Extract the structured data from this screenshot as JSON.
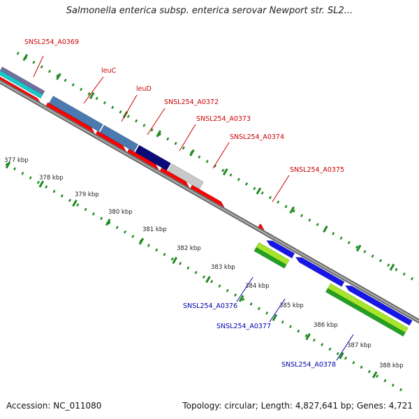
{
  "title": "Salmonella enterica subsp. enterica serovar Newport str. SL2...",
  "footer": {
    "accession": "Accession: NC_011080",
    "summary": "Topology: circular; Length: 4,827,641 bp; Genes: 4,721"
  },
  "colors": {
    "backbone": "#8c8c8c",
    "forward_cds": "#ff0000",
    "reverse_cds": "#1616e8",
    "forward_label": "#cc0000",
    "reverse_label": "#0000aa",
    "tick": "#1e8c1e",
    "gene_blue": "#4a7ab0",
    "gene_navy": "#0a0a78",
    "gene_gray": "#c8c8c8",
    "gene_cyan": "#18c8c8",
    "gene_slate": "#7070a0",
    "gene_green": "#22a022",
    "gene_lime": "#a6e62a"
  },
  "axis": {
    "unit": "kbp",
    "labels": [
      "377 kbp",
      "378 kbp",
      "379 kbp",
      "380 kbp",
      "381 kbp",
      "382 kbp",
      "383 kbp",
      "384 kbp",
      "385 kbp",
      "386 kbp",
      "387 kbp",
      "388 kbp"
    ]
  },
  "genes_forward": [
    {
      "label": "SNSL254_A0369"
    },
    {
      "label": "leuC"
    },
    {
      "label": "leuD"
    },
    {
      "label": "SNSL254_A0372"
    },
    {
      "label": "SNSL254_A0373"
    },
    {
      "label": "SNSL254_A0374"
    },
    {
      "label": "SNSL254_A0375"
    }
  ],
  "genes_reverse": [
    {
      "label": "SNSL254_A0376"
    },
    {
      "label": "SNSL254_A0377"
    },
    {
      "label": "SNSL254_A0378"
    }
  ]
}
